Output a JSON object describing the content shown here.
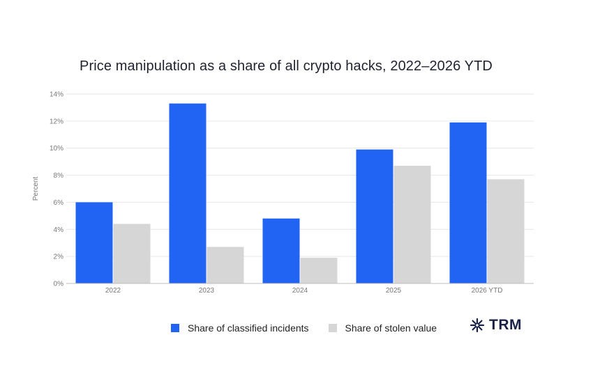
{
  "chart_data": {
    "type": "bar",
    "title": "Price manipulation as a share of all crypto hacks, 2022–2026 YTD",
    "ylabel": "Percent",
    "xlabel": "",
    "ylim": [
      0,
      14
    ],
    "yticks": [
      "0%",
      "2%",
      "4%",
      "6%",
      "8%",
      "10%",
      "12%",
      "14%"
    ],
    "categories": [
      "2022",
      "2023",
      "2024",
      "2025",
      "2026 YTD"
    ],
    "series": [
      {
        "name": "Share of classified incidents",
        "color": "#2164f3",
        "values": [
          6.0,
          13.3,
          4.8,
          9.9,
          11.9
        ]
      },
      {
        "name": "Share of stolen value",
        "color": "#d6d6d6",
        "values": [
          4.4,
          2.7,
          1.9,
          8.7,
          7.7
        ]
      }
    ],
    "grid": true,
    "legend_position": "bottom"
  },
  "logo": {
    "text": "TRM",
    "icon": "asterisk-logo-icon"
  }
}
